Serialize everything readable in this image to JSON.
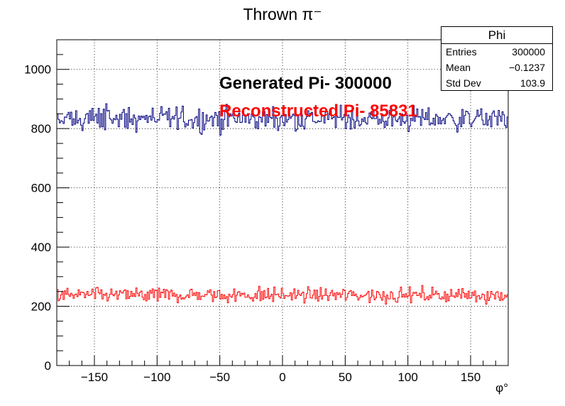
{
  "chart_data": {
    "type": "histogram-step",
    "title": "Thrown π⁻",
    "xlabel": "φ°",
    "ylabel": "",
    "xlim": [
      -180,
      180
    ],
    "ylim": [
      0,
      1100
    ],
    "grid": true,
    "x_ticks": [
      -150,
      -100,
      -50,
      0,
      50,
      100,
      150
    ],
    "x_tick_labels": [
      "−150",
      "−100",
      "−50",
      "0",
      "50",
      "100",
      "150"
    ],
    "y_ticks": [
      0,
      200,
      400,
      600,
      800,
      1000
    ],
    "y_tick_labels": [
      "0",
      "200",
      "400",
      "600",
      "800",
      "1000"
    ],
    "bins": 360,
    "series": [
      {
        "color": "#000080",
        "mean_level": 833,
        "spread": 28,
        "range": [
          752,
          910
        ]
      },
      {
        "color": "#ff0000",
        "mean_level": 238,
        "spread": 17,
        "range": [
          195,
          290
        ]
      }
    ],
    "annotations": [
      {
        "text": "Generated Pi- 300000",
        "color": "#000000"
      },
      {
        "text": "Reconstructed Pi- 85831",
        "color": "#ff0000"
      }
    ],
    "stats_box": {
      "title": "Phi",
      "rows": [
        {
          "label": "Entries",
          "value": "300000"
        },
        {
          "label": "Mean",
          "value": "−0.1237"
        },
        {
          "label": "Std Dev",
          "value": "103.9"
        }
      ]
    }
  }
}
